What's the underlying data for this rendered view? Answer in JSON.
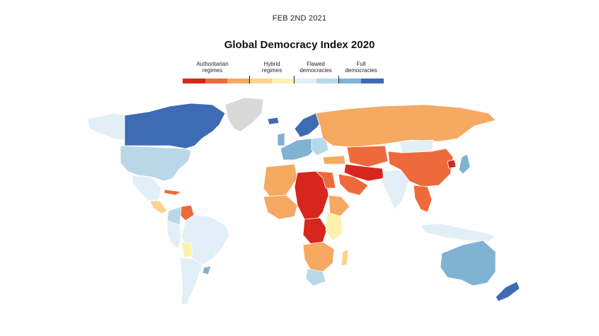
{
  "header": {
    "date": "FEB 2ND 2021",
    "title": "Global Democracy Index 2020"
  },
  "legend": {
    "categories": [
      {
        "line1": "Authoritarian",
        "line2": "regimes"
      },
      {
        "line1": "Hybrid",
        "line2": "regimes"
      },
      {
        "line1": "Flawed",
        "line2": "democracies"
      },
      {
        "line1": "Full",
        "line2": "democracies"
      }
    ],
    "swatches": [
      "#d7261e",
      "#ee6a3c",
      "#f6a961",
      "#fbd38d",
      "#fdf1b0",
      "#e3eff6",
      "#b8d8e8",
      "#7fb2d3",
      "#3d6cb5"
    ]
  },
  "palette": {
    "auth_dark": "#d7261e",
    "auth_mid": "#ee6a3c",
    "auth_light": "#f6a961",
    "hybrid_dark": "#fbd38d",
    "hybrid_light": "#fdf1b0",
    "flawed_light": "#e3eff6",
    "flawed_mid": "#b8d8e8",
    "full_light": "#7fb2d3",
    "full_dark": "#3d6cb5",
    "no_data": "#d9d9d9"
  }
}
